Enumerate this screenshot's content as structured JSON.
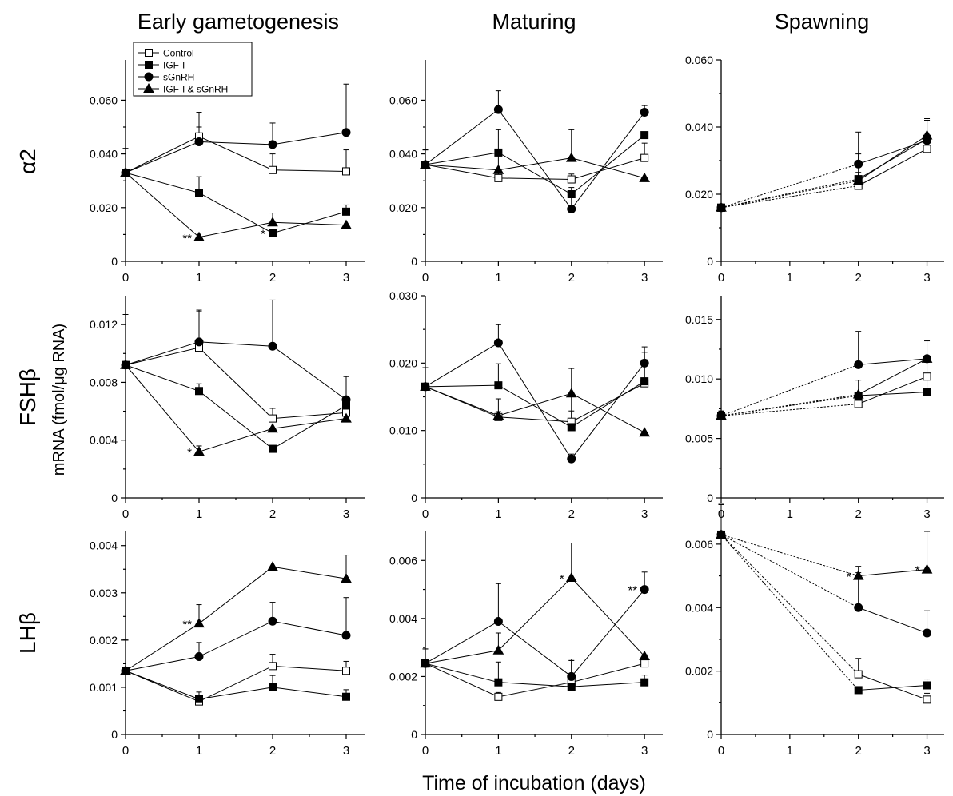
{
  "figure": {
    "columns": [
      "Early gametogenesis",
      "Maturing",
      "Spawning"
    ],
    "rows": [
      "α2",
      "FSHβ",
      "LHβ"
    ],
    "ylabel": "mRNA (fmol/μg RNA)",
    "xlabel": "Time of incubation (days)"
  },
  "legend": [
    "Control",
    "IGF-I",
    "sGnRH",
    "IGF-I & sGnRH"
  ],
  "series_styles": {
    "Control": "open-square",
    "IGF-I": "filled-square",
    "sGnRH": "filled-circle",
    "IGF-I & sGnRH": "filled-triangle"
  },
  "chart_data": [
    {
      "type": "line",
      "row": "α2",
      "column": "Early gametogenesis",
      "x": [
        0,
        1,
        2,
        3
      ],
      "xlim": [
        0,
        3.25
      ],
      "ylim": [
        0,
        0.075
      ],
      "yticks": [
        "0",
        "0.020",
        "0.040",
        "0.060"
      ],
      "xticks": [
        "0",
        "1",
        "2",
        "3"
      ],
      "series": [
        {
          "name": "Control",
          "values": [
            0.033,
            0.0465,
            0.034,
            0.0335
          ],
          "err": [
            0.009,
            0.009,
            0.006,
            0.008
          ]
        },
        {
          "name": "IGF-I",
          "values": [
            0.033,
            0.0255,
            0.0105,
            0.0185
          ],
          "err": [
            0.009,
            0.006,
            0.001,
            0.0025
          ]
        },
        {
          "name": "sGnRH",
          "values": [
            0.033,
            0.0445,
            0.0435,
            0.048
          ],
          "err": [
            0.009,
            0.0055,
            0.008,
            0.018
          ]
        },
        {
          "name": "IGF-I & sGnRH",
          "values": [
            0.033,
            0.009,
            0.0145,
            0.0135
          ],
          "err": [
            0.009,
            0.0,
            0.0035,
            0.0
          ]
        }
      ],
      "annotations": [
        {
          "x": 1,
          "y": 0.009,
          "text": "**"
        },
        {
          "x": 2,
          "y": 0.0105,
          "text": "*"
        }
      ]
    },
    {
      "type": "line",
      "row": "α2",
      "column": "Maturing",
      "x": [
        0,
        1,
        2,
        3
      ],
      "xlim": [
        0,
        3.25
      ],
      "ylim": [
        0,
        0.075
      ],
      "yticks": [
        "0",
        "0.020",
        "0.040",
        "0.060"
      ],
      "xticks": [
        "0",
        "1",
        "2",
        "3"
      ],
      "series": [
        {
          "name": "Control",
          "values": [
            0.036,
            0.031,
            0.0305,
            0.0385
          ],
          "err": [
            0.0055,
            0.0018,
            0.002,
            0.0055
          ]
        },
        {
          "name": "IGF-I",
          "values": [
            0.036,
            0.0405,
            0.025,
            0.047
          ],
          "err": [
            0.0055,
            0.0,
            0.0,
            0.0
          ]
        },
        {
          "name": "sGnRH",
          "values": [
            0.036,
            0.0565,
            0.0195,
            0.0555
          ],
          "err": [
            0.0055,
            0.007,
            0.008,
            0.0025
          ]
        },
        {
          "name": "IGF-I & sGnRH",
          "values": [
            0.036,
            0.034,
            0.0385,
            0.031
          ],
          "err": [
            0.0055,
            0.015,
            0.0105,
            0.0
          ]
        }
      ],
      "annotations": []
    },
    {
      "type": "line",
      "row": "α2",
      "column": "Spawning",
      "x": [
        0,
        2,
        3
      ],
      "xlim": [
        0,
        3.25
      ],
      "ylim": [
        0,
        0.06
      ],
      "dashed_from_start": true,
      "yticks": [
        "0",
        "0.020",
        "0.040",
        "0.060"
      ],
      "xticks": [
        "0",
        "1",
        "2",
        "3"
      ],
      "series": [
        {
          "name": "Control",
          "values": [
            0.016,
            0.0225,
            0.0335
          ],
          "err": [
            0.0008,
            0.003,
            0.003
          ]
        },
        {
          "name": "IGF-I",
          "values": [
            0.016,
            0.0245,
            0.0365
          ],
          "err": [
            0.0008,
            0.002,
            0.0055
          ]
        },
        {
          "name": "sGnRH",
          "values": [
            0.016,
            0.029,
            0.036
          ],
          "err": [
            0.0008,
            0.0095,
            0.006
          ]
        },
        {
          "name": "IGF-I & sGnRH",
          "values": [
            0.016,
            0.024,
            0.0375
          ],
          "err": [
            0.0008,
            0.008,
            0.005
          ]
        }
      ],
      "annotations": []
    },
    {
      "type": "line",
      "row": "FSHβ",
      "column": "Early gametogenesis",
      "x": [
        0,
        1,
        2,
        3
      ],
      "xlim": [
        0,
        3.25
      ],
      "ylim": [
        0,
        0.014
      ],
      "yticks": [
        "0",
        "0.004",
        "0.008",
        "0.012"
      ],
      "xticks": [
        "0",
        "1",
        "2",
        "3"
      ],
      "series": [
        {
          "name": "Control",
          "values": [
            0.0092,
            0.0104,
            0.0055,
            0.0059
          ],
          "err": [
            0.0035,
            0.0025,
            0.0007,
            0.0009
          ]
        },
        {
          "name": "IGF-I",
          "values": [
            0.0092,
            0.0074,
            0.0034,
            0.0064
          ],
          "err": [
            0.0035,
            0.0005,
            0.0002,
            0.0004
          ]
        },
        {
          "name": "sGnRH",
          "values": [
            0.0092,
            0.0108,
            0.0105,
            0.0068
          ],
          "err": [
            0.0035,
            0.0022,
            0.0032,
            0.0016
          ]
        },
        {
          "name": "IGF-I & sGnRH",
          "values": [
            0.0092,
            0.0032,
            0.0048,
            0.0055
          ],
          "err": [
            0.0035,
            0.0004,
            0.0,
            0.0009
          ]
        }
      ],
      "annotations": [
        {
          "x": 1,
          "y": 0.0032,
          "text": "*"
        }
      ]
    },
    {
      "type": "line",
      "row": "FSHβ",
      "column": "Maturing",
      "x": [
        0,
        1,
        2,
        3
      ],
      "xlim": [
        0,
        3.25
      ],
      "ylim": [
        0,
        0.03
      ],
      "yticks": [
        "0",
        "0.010",
        "0.020",
        "0.030"
      ],
      "xticks": [
        "0",
        "1",
        "2",
        "3"
      ],
      "series": [
        {
          "name": "Control",
          "values": [
            0.0165,
            0.012,
            0.0113,
            0.017
          ],
          "err": [
            0.0028,
            0.0008,
            0.0016,
            0.0035
          ]
        },
        {
          "name": "IGF-I",
          "values": [
            0.0165,
            0.0167,
            0.0105,
            0.0173
          ],
          "err": [
            0.0028,
            0.0032,
            0.0045,
            0.0043
          ]
        },
        {
          "name": "sGnRH",
          "values": [
            0.0165,
            0.023,
            0.0058,
            0.02
          ],
          "err": [
            0.0028,
            0.0027,
            0.0007,
            0.0024
          ]
        },
        {
          "name": "IGF-I & sGnRH",
          "values": [
            0.0165,
            0.0122,
            0.0155,
            0.0097
          ],
          "err": [
            0.0028,
            0.0025,
            0.0037,
            0.0
          ]
        }
      ],
      "annotations": []
    },
    {
      "type": "line",
      "row": "FSHβ",
      "column": "Spawning",
      "x": [
        0,
        2,
        3
      ],
      "xlim": [
        0,
        3.25
      ],
      "ylim": [
        0,
        0.017
      ],
      "dashed_from_start": true,
      "yticks": [
        "0",
        "0.005",
        "0.010",
        "0.015"
      ],
      "xticks": [
        "0",
        "1",
        "2",
        "3"
      ],
      "series": [
        {
          "name": "Control",
          "values": [
            0.0069,
            0.0079,
            0.0102
          ],
          "err": [
            0.0004,
            0.002,
            0.0012
          ]
        },
        {
          "name": "IGF-I",
          "values": [
            0.0069,
            0.0086,
            0.0089
          ],
          "err": [
            0.0004,
            0.0,
            0.0013
          ]
        },
        {
          "name": "sGnRH",
          "values": [
            0.0069,
            0.0112,
            0.0117
          ],
          "err": [
            0.0004,
            0.0028,
            0.0
          ]
        },
        {
          "name": "IGF-I & sGnRH",
          "values": [
            0.0069,
            0.0087,
            0.0117
          ],
          "err": [
            0.0004,
            0.0,
            0.0015
          ]
        }
      ],
      "annotations": []
    },
    {
      "type": "line",
      "row": "LHβ",
      "column": "Early gametogenesis",
      "x": [
        0,
        1,
        2,
        3
      ],
      "xlim": [
        0,
        3.25
      ],
      "ylim": [
        0,
        0.0043
      ],
      "yticks": [
        "0",
        "0.001",
        "0.002",
        "0.003",
        "0.004"
      ],
      "xticks": [
        "0",
        "1",
        "2",
        "3"
      ],
      "series": [
        {
          "name": "Control",
          "values": [
            0.00135,
            0.0007,
            0.00145,
            0.00135
          ],
          "err": [
            0.00065,
            0.0001,
            0.00025,
            0.0002
          ]
        },
        {
          "name": "IGF-I",
          "values": [
            0.00135,
            0.00075,
            0.001,
            0.0008
          ],
          "err": [
            0.00065,
            0.00015,
            0.00025,
            0.00015
          ]
        },
        {
          "name": "sGnRH",
          "values": [
            0.00135,
            0.00165,
            0.0024,
            0.0021
          ],
          "err": [
            0.00065,
            0.0003,
            0.0004,
            0.0008
          ]
        },
        {
          "name": "IGF-I & sGnRH",
          "values": [
            0.00135,
            0.00235,
            0.00355,
            0.0033
          ],
          "err": [
            0.00065,
            0.0004,
            0.0,
            0.0005
          ]
        }
      ],
      "annotations": [
        {
          "x": 1,
          "y": 0.00235,
          "text": "**"
        }
      ]
    },
    {
      "type": "line",
      "row": "LHβ",
      "column": "Maturing",
      "x": [
        0,
        1,
        2,
        3
      ],
      "xlim": [
        0,
        3.25
      ],
      "ylim": [
        0,
        0.007
      ],
      "yticks": [
        "0",
        "0.002",
        "0.004",
        "0.006"
      ],
      "xticks": [
        "0",
        "1",
        "2",
        "3"
      ],
      "series": [
        {
          "name": "Control",
          "values": [
            0.00245,
            0.0013,
            0.0018,
            0.00245
          ],
          "err": [
            0.0005,
            0.00015,
            0.0003,
            0.0003
          ]
        },
        {
          "name": "IGF-I",
          "values": [
            0.00245,
            0.0018,
            0.00165,
            0.0018
          ],
          "err": [
            0.0005,
            0.0007,
            0.0009,
            0.00025
          ]
        },
        {
          "name": "sGnRH",
          "values": [
            0.00245,
            0.0039,
            0.002,
            0.005
          ],
          "err": [
            0.0005,
            0.0013,
            0.0006,
            0.0006
          ]
        },
        {
          "name": "IGF-I & sGnRH",
          "values": [
            0.00245,
            0.0029,
            0.0054,
            0.0027
          ],
          "err": [
            0.0005,
            0.0006,
            0.0012,
            0.0
          ]
        }
      ],
      "annotations": [
        {
          "x": 2,
          "y": 0.0054,
          "text": "*"
        },
        {
          "x": 3,
          "y": 0.005,
          "text": "**"
        }
      ]
    },
    {
      "type": "line",
      "row": "LHβ",
      "column": "Spawning",
      "x": [
        0,
        2,
        3
      ],
      "xlim": [
        0,
        3.25
      ],
      "ylim": [
        0,
        0.0064
      ],
      "dashed_from_start": true,
      "yticks": [
        "0",
        "0.002",
        "0.004",
        "0.006"
      ],
      "xticks": [
        "0",
        "1",
        "2",
        "3"
      ],
      "series": [
        {
          "name": "Control",
          "values": [
            0.0063,
            0.0019,
            0.0011
          ],
          "err": [
            0.00095,
            0.0005,
            0.0002
          ]
        },
        {
          "name": "IGF-I",
          "values": [
            0.0063,
            0.0014,
            0.00155
          ],
          "err": [
            0.00095,
            0.0001,
            0.0002
          ]
        },
        {
          "name": "sGnRH",
          "values": [
            0.0063,
            0.004,
            0.0032
          ],
          "err": [
            0.00095,
            0.0013,
            0.0007
          ]
        },
        {
          "name": "IGF-I & sGnRH",
          "values": [
            0.0063,
            0.005,
            0.0052
          ],
          "err": [
            0.00095,
            0.0001,
            0.0012
          ]
        }
      ],
      "annotations": [
        {
          "x": 2,
          "y": 0.005,
          "text": "*"
        },
        {
          "x": 3,
          "y": 0.0052,
          "text": "*"
        }
      ]
    }
  ]
}
